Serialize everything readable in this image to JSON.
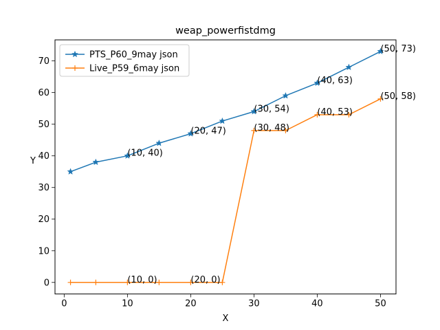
{
  "chart_data": {
    "type": "line",
    "title": "weap_powerfistdmg",
    "xlabel": "X",
    "ylabel": "Y",
    "xlim": [
      -1.45,
      52.45
    ],
    "ylim": [
      -3.65,
      76.65
    ],
    "xticks": [
      0,
      10,
      20,
      30,
      40,
      50
    ],
    "yticks": [
      0,
      10,
      20,
      30,
      40,
      50,
      60,
      70
    ],
    "grid": false,
    "legend_position": "top-left",
    "series": [
      {
        "name": "PTS_P60_9may json",
        "color": "#1f77b4",
        "marker": "star",
        "x": [
          1,
          5,
          10,
          15,
          20,
          25,
          30,
          35,
          40,
          45,
          50
        ],
        "y": [
          35,
          38,
          40,
          44,
          47,
          51,
          54,
          59,
          63,
          68,
          73
        ]
      },
      {
        "name": "Live_P59_6may json",
        "color": "#ff7f0e",
        "marker": "plus",
        "x": [
          1,
          5,
          10,
          15,
          20,
          25,
          30,
          35,
          40,
          45,
          50
        ],
        "y": [
          0,
          0,
          0,
          0,
          0,
          0,
          48,
          48,
          53,
          53,
          58
        ]
      }
    ],
    "annotations": [
      {
        "x": 10,
        "y": 40,
        "text": "(10, 40)"
      },
      {
        "x": 20,
        "y": 47,
        "text": "(20, 47)"
      },
      {
        "x": 30,
        "y": 54,
        "text": "(30, 54)"
      },
      {
        "x": 40,
        "y": 63,
        "text": "(40, 63)"
      },
      {
        "x": 50,
        "y": 73,
        "text": "(50, 73)"
      },
      {
        "x": 10,
        "y": 0,
        "text": "(10, 0)"
      },
      {
        "x": 20,
        "y": 0,
        "text": "(20, 0)"
      },
      {
        "x": 30,
        "y": 48,
        "text": "(30, 48)"
      },
      {
        "x": 40,
        "y": 53,
        "text": "(40, 53)"
      },
      {
        "x": 50,
        "y": 58,
        "text": "(50, 58)"
      }
    ]
  }
}
